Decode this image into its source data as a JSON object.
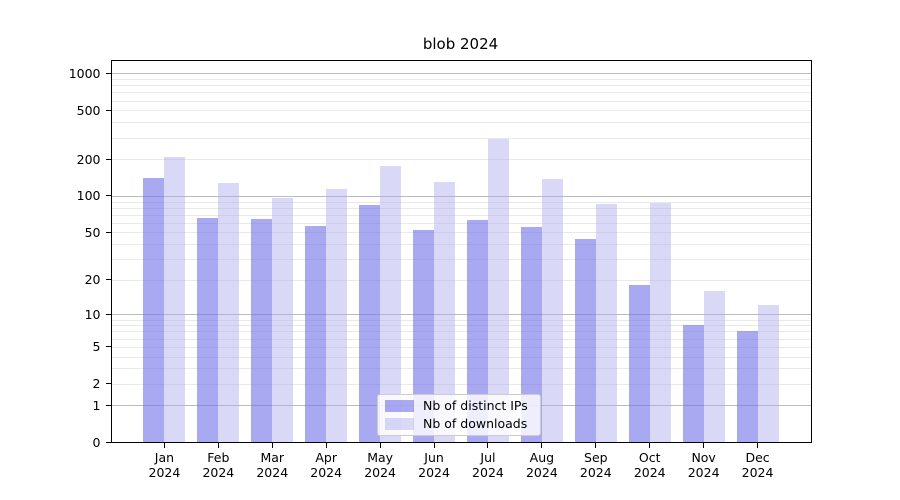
{
  "chart_data": {
    "type": "bar",
    "title": "blob 2024",
    "categories": [
      "Jan 2024",
      "Feb 2024",
      "Mar 2024",
      "Apr 2024",
      "May 2024",
      "Jun 2024",
      "Jul 2024",
      "Aug 2024",
      "Sep 2024",
      "Oct 2024",
      "Nov 2024",
      "Dec 2024"
    ],
    "series": [
      {
        "name": "Nb of distinct IPs",
        "color": "rgba(112,112,233,0.60)",
        "values": [
          140,
          66,
          65,
          57,
          84,
          52,
          64,
          55,
          44,
          18,
          8,
          7
        ]
      },
      {
        "name": "Nb of downloads",
        "color": "rgba(171,171,237,0.45)",
        "values": [
          210,
          128,
          96,
          115,
          177,
          131,
          290,
          137,
          86,
          88,
          16,
          12
        ]
      }
    ],
    "yscale": "log1p",
    "y_ticks": [
      0,
      1,
      2,
      5,
      10,
      20,
      50,
      100,
      200,
      500,
      1000
    ],
    "ylim": [
      0,
      1270
    ],
    "xlabel": "",
    "ylabel": "",
    "grid": "horizontal major+minor",
    "legend_position": "lower center"
  },
  "colors": {
    "background": "#ffffff",
    "axis": "#000000",
    "grid_major": "#bcbcbc",
    "grid_minor": "#e9e9e9",
    "legend_border": "#cccccc",
    "legend_bg": "rgba(255,255,255,0.8)",
    "text": "#000000"
  }
}
